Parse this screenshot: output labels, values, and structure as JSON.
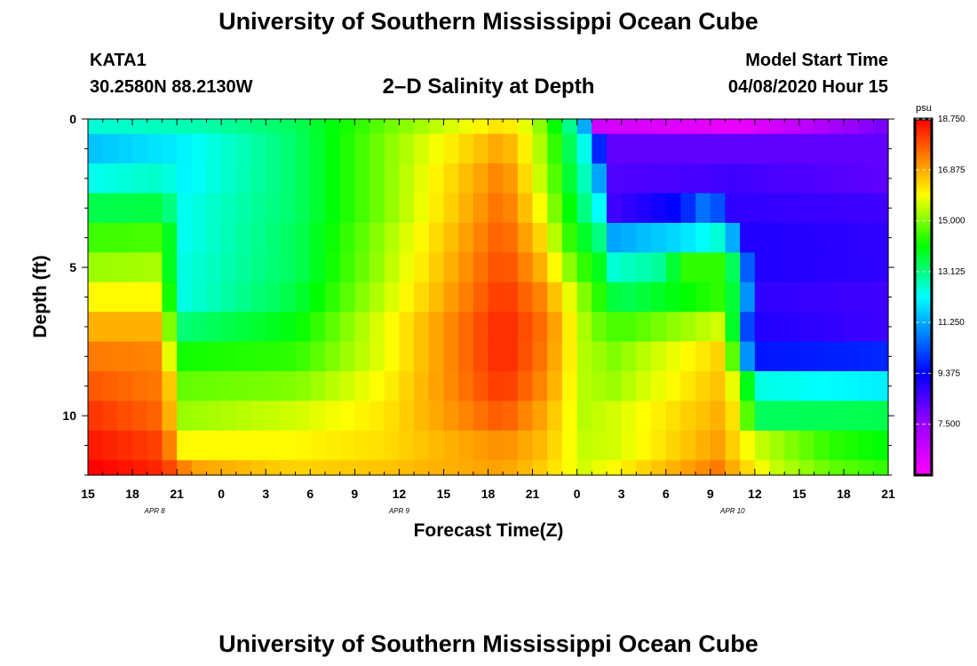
{
  "header": {
    "title_top": "University of Southern Mississippi Ocean Cube",
    "station": "KATA1",
    "coords": "30.2580N 88.2130W",
    "subtitle": "2–D Salinity at Depth",
    "model_label": "Model Start Time",
    "model_time": "04/08/2020 Hour 15"
  },
  "footer": {
    "title_bottom": "University of Southern Mississippi Ocean Cube"
  },
  "chart_data": {
    "type": "heatmap",
    "title": "2–D Salinity at Depth",
    "xlabel": "Forecast Time(Z)",
    "ylabel": "Depth (ft)",
    "x_ticks": [
      "15",
      "18",
      "21",
      "0",
      "3",
      "6",
      "9",
      "12",
      "15",
      "18",
      "21",
      "0",
      "3",
      "6",
      "9",
      "12",
      "15",
      "18",
      "21"
    ],
    "date_labels": [
      {
        "label": "APR  8",
        "tick_index": 1.5
      },
      {
        "label": "APR  9",
        "tick_index": 7
      },
      {
        "label": "APR  10",
        "tick_index": 14.5
      }
    ],
    "x_range_hours": [
      0,
      54
    ],
    "y_ticks": [
      0,
      5,
      10
    ],
    "y_range": [
      0,
      12
    ],
    "colorbar": {
      "unit": "psu",
      "min": 5.625,
      "max": 18.75,
      "ticks": [
        "18.750",
        "16.875",
        "15.000",
        "13.125",
        "11.250",
        "9.375",
        "7.500"
      ]
    },
    "rows": [
      {
        "depth": [
          0,
          0.5
        ],
        "keys": [
          [
            0,
            12.5
          ],
          [
            8,
            12.8
          ],
          [
            14,
            13.4
          ],
          [
            20,
            14.8
          ],
          [
            28,
            16.3
          ],
          [
            30,
            15.6
          ],
          [
            32,
            13.6
          ],
          [
            33.3,
            12.2
          ],
          [
            34.5,
            6.5
          ],
          [
            44,
            6.0
          ],
          [
            54,
            8.0
          ]
        ]
      },
      {
        "depth": [
          0.5,
          1.5
        ],
        "keys": [
          [
            0,
            11.5
          ],
          [
            6,
            12.0
          ],
          [
            14,
            13.3
          ],
          [
            20,
            15.0
          ],
          [
            28,
            17.0
          ],
          [
            30,
            15.8
          ],
          [
            32,
            14.0
          ],
          [
            33.8,
            12.0
          ],
          [
            35,
            8.2
          ],
          [
            54,
            8.2
          ]
        ]
      },
      {
        "depth": [
          1.5,
          2.5
        ],
        "keys": [
          [
            0,
            12.3
          ],
          [
            5,
            12.6
          ],
          [
            6.5,
            12.1
          ],
          [
            14,
            13.3
          ],
          [
            20,
            15.0
          ],
          [
            28,
            17.4
          ],
          [
            30,
            16.0
          ],
          [
            32,
            14.2
          ],
          [
            34.2,
            12.0
          ],
          [
            35.5,
            8.4
          ],
          [
            44,
            8.6
          ],
          [
            54,
            8.2
          ]
        ]
      },
      {
        "depth": [
          2.5,
          3.5
        ],
        "keys": [
          [
            0,
            13.5
          ],
          [
            5,
            13.6
          ],
          [
            6.5,
            12.3
          ],
          [
            14,
            13.3
          ],
          [
            20,
            15.0
          ],
          [
            28,
            17.6
          ],
          [
            30.2,
            16.2
          ],
          [
            32.2,
            14.3
          ],
          [
            34.5,
            12.2
          ],
          [
            35.5,
            8.6
          ],
          [
            40,
            9.5
          ],
          [
            42,
            11.0
          ],
          [
            43.5,
            8.8
          ],
          [
            54,
            8.6
          ]
        ]
      },
      {
        "depth": [
          3.5,
          4.5
        ],
        "keys": [
          [
            0,
            14.5
          ],
          [
            5,
            14.6
          ],
          [
            6.5,
            12.3
          ],
          [
            14,
            13.4
          ],
          [
            20,
            15.2
          ],
          [
            28,
            17.8
          ],
          [
            30.4,
            16.5
          ],
          [
            32.4,
            14.5
          ],
          [
            35,
            12.8
          ],
          [
            35.5,
            11.2
          ],
          [
            40,
            11.8
          ],
          [
            42.5,
            12.5
          ],
          [
            43.5,
            11.3
          ],
          [
            44.5,
            9.0
          ],
          [
            54,
            8.8
          ]
        ]
      },
      {
        "depth": [
          4.5,
          5.5
        ],
        "keys": [
          [
            0,
            15.2
          ],
          [
            4.5,
            15.3
          ],
          [
            6.5,
            12.4
          ],
          [
            14,
            13.4
          ],
          [
            20,
            15.3
          ],
          [
            28,
            18.0
          ],
          [
            30.6,
            16.8
          ],
          [
            32.8,
            14.8
          ],
          [
            35,
            13.6
          ],
          [
            35.5,
            12.5
          ],
          [
            39,
            13.0
          ],
          [
            40,
            14.4
          ],
          [
            43.2,
            14.4
          ],
          [
            44,
            11.8
          ],
          [
            45,
            9.0
          ],
          [
            54,
            8.8
          ]
        ]
      },
      {
        "depth": [
          5.5,
          6.5
        ],
        "keys": [
          [
            0,
            16.0
          ],
          [
            4.5,
            16.0
          ],
          [
            6.5,
            12.4
          ],
          [
            14,
            13.6
          ],
          [
            20,
            15.5
          ],
          [
            28,
            18.2
          ],
          [
            30.8,
            17.2
          ],
          [
            33.2,
            15.2
          ],
          [
            35,
            14.0
          ],
          [
            35.8,
            13.4
          ],
          [
            43.2,
            14.5
          ],
          [
            44.5,
            11.0
          ],
          [
            45.2,
            8.8
          ],
          [
            54,
            8.6
          ]
        ]
      },
      {
        "depth": [
          6.5,
          7.5
        ],
        "keys": [
          [
            0,
            16.8
          ],
          [
            4.5,
            16.8
          ],
          [
            6.5,
            13.2
          ],
          [
            14,
            14.0
          ],
          [
            20,
            15.8
          ],
          [
            28,
            18.4
          ],
          [
            31,
            17.4
          ],
          [
            33.3,
            15.4
          ],
          [
            35,
            14.6
          ],
          [
            36.5,
            14.6
          ],
          [
            42.5,
            15.6
          ],
          [
            43.6,
            13.6
          ],
          [
            44.8,
            9.0
          ],
          [
            54,
            8.6
          ]
        ]
      },
      {
        "depth": [
          7.5,
          8.5
        ],
        "keys": [
          [
            0,
            17.4
          ],
          [
            4.5,
            17.3
          ],
          [
            6.5,
            14.2
          ],
          [
            14,
            14.4
          ],
          [
            20,
            15.8
          ],
          [
            28,
            18.4
          ],
          [
            31,
            17.3
          ],
          [
            33.4,
            15.4
          ],
          [
            35.5,
            15.0
          ],
          [
            42.5,
            16.4
          ],
          [
            43.8,
            14.2
          ],
          [
            44.5,
            11.0
          ],
          [
            45,
            9.6
          ],
          [
            54,
            9.8
          ]
        ]
      },
      {
        "depth": [
          8.5,
          9.5
        ],
        "keys": [
          [
            0,
            17.8
          ],
          [
            5,
            17.4
          ],
          [
            6.5,
            14.8
          ],
          [
            14,
            15.0
          ],
          [
            20,
            16.0
          ],
          [
            28,
            18.2
          ],
          [
            31,
            17.1
          ],
          [
            33.4,
            15.4
          ],
          [
            35.5,
            15.2
          ],
          [
            42.5,
            16.6
          ],
          [
            44,
            15.4
          ],
          [
            45,
            12.4
          ],
          [
            54,
            12.0
          ]
        ]
      },
      {
        "depth": [
          9.5,
          10.5
        ],
        "keys": [
          [
            0,
            18.2
          ],
          [
            5,
            17.6
          ],
          [
            6.5,
            15.2
          ],
          [
            14,
            15.6
          ],
          [
            20,
            16.2
          ],
          [
            28,
            17.8
          ],
          [
            31,
            16.8
          ],
          [
            33.4,
            15.4
          ],
          [
            35.5,
            15.6
          ],
          [
            42.5,
            16.8
          ],
          [
            44,
            16.0
          ],
          [
            45,
            13.4
          ],
          [
            54,
            13.5
          ]
        ]
      },
      {
        "depth": [
          10.5,
          11.5
        ],
        "keys": [
          [
            0,
            18.5
          ],
          [
            5,
            18.0
          ],
          [
            6.5,
            16.0
          ],
          [
            14,
            16.0
          ],
          [
            20,
            16.3
          ],
          [
            28,
            17.2
          ],
          [
            31,
            16.6
          ],
          [
            33.4,
            15.5
          ],
          [
            35.5,
            15.6
          ],
          [
            42.5,
            17.0
          ],
          [
            44,
            16.2
          ],
          [
            45,
            15.6
          ],
          [
            50,
            14.4
          ],
          [
            54,
            14.0
          ]
        ]
      },
      {
        "depth": [
          11.5,
          12
        ],
        "keys": [
          [
            0,
            18.8
          ],
          [
            5,
            18.3
          ],
          [
            7,
            17.0
          ],
          [
            14,
            16.4
          ],
          [
            20,
            16.6
          ],
          [
            28,
            17.0
          ],
          [
            31,
            16.4
          ],
          [
            33.4,
            15.6
          ],
          [
            35.5,
            16.0
          ],
          [
            42.5,
            17.4
          ],
          [
            44,
            16.6
          ],
          [
            46,
            15.6
          ],
          [
            50,
            14.8
          ],
          [
            54,
            14.4
          ]
        ]
      }
    ]
  }
}
